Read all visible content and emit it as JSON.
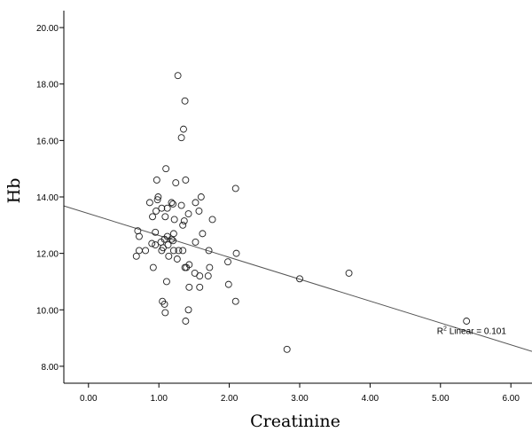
{
  "chart_data": {
    "type": "scatter",
    "xlabel": "Creatinine",
    "ylabel": "Hb",
    "xlim": [
      -0.35,
      6.3
    ],
    "ylim": [
      7.4,
      20.6
    ],
    "xticks": [
      {
        "value": 0,
        "label": "0.00"
      },
      {
        "value": 1,
        "label": "1.00"
      },
      {
        "value": 2,
        "label": "2.00"
      },
      {
        "value": 3,
        "label": "3.00"
      },
      {
        "value": 4,
        "label": "4.00"
      },
      {
        "value": 5,
        "label": "5.00"
      },
      {
        "value": 6,
        "label": "6.00"
      }
    ],
    "yticks": [
      {
        "value": 8,
        "label": "8.00"
      },
      {
        "value": 10,
        "label": "10.00"
      },
      {
        "value": 12,
        "label": "12.00"
      },
      {
        "value": 14,
        "label": "14.00"
      },
      {
        "value": 16,
        "label": "16.00"
      },
      {
        "value": 18,
        "label": "18.00"
      },
      {
        "value": 20,
        "label": "20.00"
      }
    ],
    "grid": false,
    "fit_line": {
      "intercept": 13.41,
      "slope": -0.775,
      "x_range": [
        -0.35,
        6.3
      ]
    },
    "annotation": {
      "prefix": "R",
      "superscript": "2",
      "suffix": " Linear = 0.101",
      "anchor_x": 4.95,
      "anchor_y": 9.15
    },
    "points": [
      {
        "x": 1.27,
        "y": 18.3
      },
      {
        "x": 1.37,
        "y": 17.4
      },
      {
        "x": 1.35,
        "y": 16.4
      },
      {
        "x": 1.32,
        "y": 16.1
      },
      {
        "x": 1.1,
        "y": 15.0
      },
      {
        "x": 0.97,
        "y": 14.6
      },
      {
        "x": 1.24,
        "y": 14.5
      },
      {
        "x": 1.38,
        "y": 14.6
      },
      {
        "x": 2.09,
        "y": 14.3
      },
      {
        "x": 1.6,
        "y": 14.0
      },
      {
        "x": 0.98,
        "y": 13.9
      },
      {
        "x": 0.99,
        "y": 14.0
      },
      {
        "x": 1.18,
        "y": 13.8
      },
      {
        "x": 1.2,
        "y": 13.75
      },
      {
        "x": 0.87,
        "y": 13.8
      },
      {
        "x": 1.52,
        "y": 13.8
      },
      {
        "x": 1.32,
        "y": 13.7
      },
      {
        "x": 1.12,
        "y": 13.6
      },
      {
        "x": 1.04,
        "y": 13.6
      },
      {
        "x": 0.96,
        "y": 13.5
      },
      {
        "x": 1.57,
        "y": 13.5
      },
      {
        "x": 1.42,
        "y": 13.4
      },
      {
        "x": 0.91,
        "y": 13.3
      },
      {
        "x": 1.09,
        "y": 13.3
      },
      {
        "x": 1.22,
        "y": 13.2
      },
      {
        "x": 1.76,
        "y": 13.2
      },
      {
        "x": 1.36,
        "y": 13.15
      },
      {
        "x": 1.34,
        "y": 13.0
      },
      {
        "x": 0.7,
        "y": 12.8
      },
      {
        "x": 0.95,
        "y": 12.75
      },
      {
        "x": 1.21,
        "y": 12.7
      },
      {
        "x": 1.62,
        "y": 12.7
      },
      {
        "x": 0.72,
        "y": 12.6
      },
      {
        "x": 1.12,
        "y": 12.6
      },
      {
        "x": 1.08,
        "y": 12.5
      },
      {
        "x": 1.18,
        "y": 12.5
      },
      {
        "x": 1.03,
        "y": 12.4
      },
      {
        "x": 1.2,
        "y": 12.45
      },
      {
        "x": 1.52,
        "y": 12.4
      },
      {
        "x": 0.9,
        "y": 12.35
      },
      {
        "x": 0.95,
        "y": 12.3
      },
      {
        "x": 1.13,
        "y": 12.3
      },
      {
        "x": 1.06,
        "y": 12.2
      },
      {
        "x": 1.04,
        "y": 12.1
      },
      {
        "x": 1.21,
        "y": 12.1
      },
      {
        "x": 0.72,
        "y": 12.1
      },
      {
        "x": 0.81,
        "y": 12.1
      },
      {
        "x": 1.34,
        "y": 12.1
      },
      {
        "x": 1.28,
        "y": 12.1
      },
      {
        "x": 1.71,
        "y": 12.1
      },
      {
        "x": 2.1,
        "y": 12.0
      },
      {
        "x": 0.68,
        "y": 11.9
      },
      {
        "x": 1.14,
        "y": 11.9
      },
      {
        "x": 1.26,
        "y": 11.8
      },
      {
        "x": 1.98,
        "y": 11.7
      },
      {
        "x": 1.43,
        "y": 11.6
      },
      {
        "x": 1.39,
        "y": 11.5
      },
      {
        "x": 1.72,
        "y": 11.5
      },
      {
        "x": 0.92,
        "y": 11.5
      },
      {
        "x": 1.37,
        "y": 11.5
      },
      {
        "x": 1.51,
        "y": 11.3
      },
      {
        "x": 1.7,
        "y": 11.2
      },
      {
        "x": 1.58,
        "y": 11.2
      },
      {
        "x": 3.7,
        "y": 11.3
      },
      {
        "x": 3.0,
        "y": 11.1
      },
      {
        "x": 1.11,
        "y": 11.0
      },
      {
        "x": 1.99,
        "y": 10.9
      },
      {
        "x": 1.43,
        "y": 10.8
      },
      {
        "x": 1.58,
        "y": 10.8
      },
      {
        "x": 1.05,
        "y": 10.3
      },
      {
        "x": 2.09,
        "y": 10.3
      },
      {
        "x": 1.08,
        "y": 10.2
      },
      {
        "x": 1.42,
        "y": 10.0
      },
      {
        "x": 1.09,
        "y": 9.9
      },
      {
        "x": 1.38,
        "y": 9.6
      },
      {
        "x": 5.37,
        "y": 9.6
      },
      {
        "x": 2.82,
        "y": 8.6
      }
    ]
  }
}
